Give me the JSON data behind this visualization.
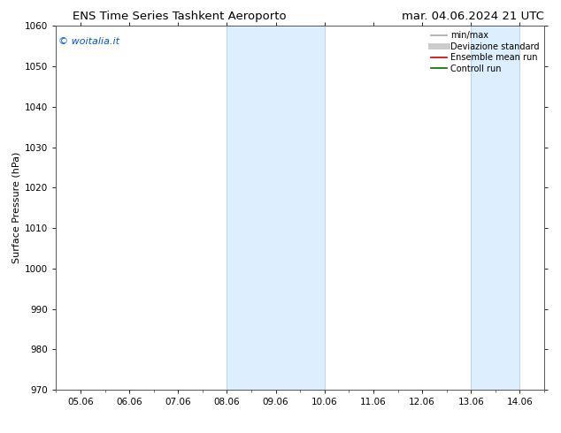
{
  "title_left": "ENS Time Series Tashkent Aeroporto",
  "title_right": "mar. 04.06.2024 21 UTC",
  "ylabel": "Surface Pressure (hPa)",
  "ylim": [
    970,
    1060
  ],
  "yticks": [
    970,
    980,
    990,
    1000,
    1010,
    1020,
    1030,
    1040,
    1050,
    1060
  ],
  "xtick_labels": [
    "05.06",
    "06.06",
    "07.06",
    "08.06",
    "09.06",
    "10.06",
    "11.06",
    "12.06",
    "13.06",
    "14.06"
  ],
  "watermark": "© woitalia.it",
  "watermark_color": "#0055cc",
  "shaded_bands": [
    {
      "xstart": 3,
      "xend": 5
    },
    {
      "xstart": 8,
      "xend": 9
    }
  ],
  "shaded_color": "#ddeeff",
  "shaded_edge_color": "#b0ccee",
  "legend_entries": [
    {
      "label": "min/max",
      "color": "#aaaaaa",
      "lw": 1.2,
      "style": "solid"
    },
    {
      "label": "Deviazione standard",
      "color": "#cccccc",
      "lw": 5,
      "style": "solid"
    },
    {
      "label": "Ensemble mean run",
      "color": "#cc0000",
      "lw": 1.2,
      "style": "solid"
    },
    {
      "label": "Controll run",
      "color": "#006600",
      "lw": 1.2,
      "style": "solid"
    }
  ],
  "bg_color": "#ffffff",
  "plot_bg_color": "#ffffff",
  "spine_color": "#555555",
  "title_fontsize": 9.5,
  "ylabel_fontsize": 8,
  "tick_fontsize": 7.5,
  "legend_fontsize": 7,
  "watermark_fontsize": 8
}
